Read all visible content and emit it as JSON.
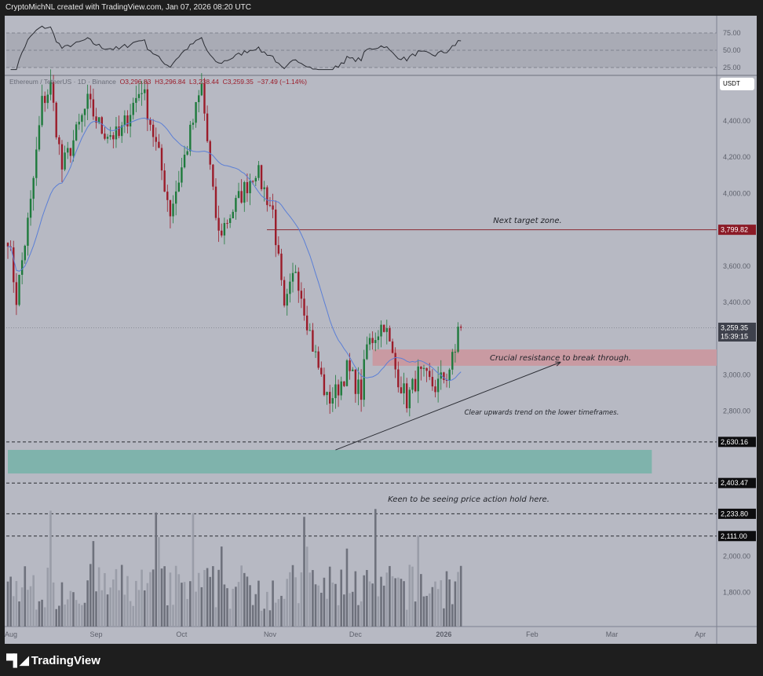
{
  "header": {
    "attribution": "CryptoMichNL created with TradingView.com, Jan 07, 2026 08:20 UTC"
  },
  "legend": {
    "symbol": "Ethereum / TetherUS · 1D · Binance",
    "open": "O3,296.83",
    "high": "H3,296.84",
    "low": "L3,238.44",
    "close": "C3,259.35",
    "change": "−37.49 (−1.14%)"
  },
  "currency_badge": "USDT",
  "logo": {
    "text": "TradingView"
  },
  "colors": {
    "up": "#1e7a3c",
    "down": "#9b1c2a",
    "ma": "#5b7fd6",
    "resistance_zone": "#c99aa2",
    "support_zone": "#7fb3ac",
    "target_line": "#8b2a33"
  },
  "chart_data": {
    "type": "candlestick",
    "ylim": [
      1620,
      4700
    ],
    "y_ticks": [
      "4,400.00",
      "4,200.00",
      "4,000.00",
      "3,600.00",
      "3,400.00",
      "3,000.00",
      "2,800.00",
      "2,000.00",
      "1,800.00"
    ],
    "y_tick_values": [
      4400,
      4200,
      4000,
      3600,
      3400,
      3000,
      2800,
      2000,
      1800
    ],
    "x_ticks": [
      "Aug",
      "Sep",
      "Oct",
      "Nov",
      "Dec",
      "2026",
      "Feb",
      "Mar",
      "Apr"
    ],
    "x_tick_dates": [
      "2025-08-01",
      "2025-09-01",
      "2025-10-01",
      "2025-11-01",
      "2025-12-01",
      "2026-01-01",
      "2026-02-01",
      "2026-03-01",
      "2026-04-01"
    ],
    "price_path": [
      [
        "2025-08-01",
        3768
      ],
      [
        "2025-08-04",
        3420
      ],
      [
        "2025-08-09",
        3940
      ],
      [
        "2025-08-13",
        4500
      ],
      [
        "2025-08-16",
        4590
      ],
      [
        "2025-08-20",
        4136
      ],
      [
        "2025-08-25",
        4330
      ],
      [
        "2025-08-29",
        4500
      ],
      [
        "2025-09-03",
        4350
      ],
      [
        "2025-09-09",
        4310
      ],
      [
        "2025-09-13",
        4460
      ],
      [
        "2025-09-17",
        4590
      ],
      [
        "2025-09-23",
        4200
      ],
      [
        "2025-09-27",
        3900
      ],
      [
        "2025-10-02",
        4200
      ],
      [
        "2025-10-08",
        4590
      ],
      [
        "2025-10-12",
        3985
      ],
      [
        "2025-10-14",
        3770
      ],
      [
        "2025-10-20",
        3940
      ],
      [
        "2025-10-27",
        4136
      ],
      [
        "2025-11-02",
        3900
      ],
      [
        "2025-11-06",
        3335
      ],
      [
        "2025-11-10",
        3595
      ],
      [
        "2025-11-16",
        3160
      ],
      [
        "2025-11-21",
        2860
      ],
      [
        "2025-11-24",
        2900
      ],
      [
        "2025-11-28",
        3030
      ],
      [
        "2025-12-03",
        2900
      ],
      [
        "2025-12-05",
        3160
      ],
      [
        "2025-12-11",
        3290
      ],
      [
        "2025-12-15",
        3030
      ],
      [
        "2025-12-19",
        2860
      ],
      [
        "2025-12-23",
        3000
      ],
      [
        "2025-12-29",
        2935
      ],
      [
        "2026-01-02",
        3000
      ],
      [
        "2026-01-05",
        3120
      ],
      [
        "2026-01-06",
        3283
      ],
      [
        "2026-01-07",
        3259.35
      ]
    ],
    "moving_average": {
      "type": "SMA",
      "period": 20
    },
    "rsi": {
      "levels": [
        75,
        50,
        25
      ],
      "ticks": [
        "75.00",
        "50.00",
        "25.00"
      ],
      "period": 14
    },
    "price_labels": {
      "target": "3,799.82",
      "last": "3,259.35",
      "countdown": "15:39:15",
      "levels": [
        "2,630.16",
        "2,403.47",
        "2,233.80",
        "2,111.00"
      ]
    },
    "levels": {
      "target": 3799.82,
      "last": 3259.35,
      "dashed": [
        2630.16,
        2403.47,
        2233.8,
        2111.0
      ]
    },
    "zones": {
      "resistance": {
        "from": "2025-12-07",
        "low": 3050,
        "high": 3140
      },
      "support": {
        "from": "2025-08-01",
        "to": "2026-03-15",
        "low": 2456,
        "high": 2586
      }
    },
    "trendline": {
      "start": [
        "2025-11-24",
        2586
      ],
      "end": [
        "2026-02-11",
        3070
      ]
    },
    "annotations": {
      "target": "Next target zone.",
      "resistance": "Crucial resistance to break through.",
      "trend": "Clear upwards trend on the lower timeframes.",
      "support": "Keen to be seeing price action hold here."
    }
  }
}
